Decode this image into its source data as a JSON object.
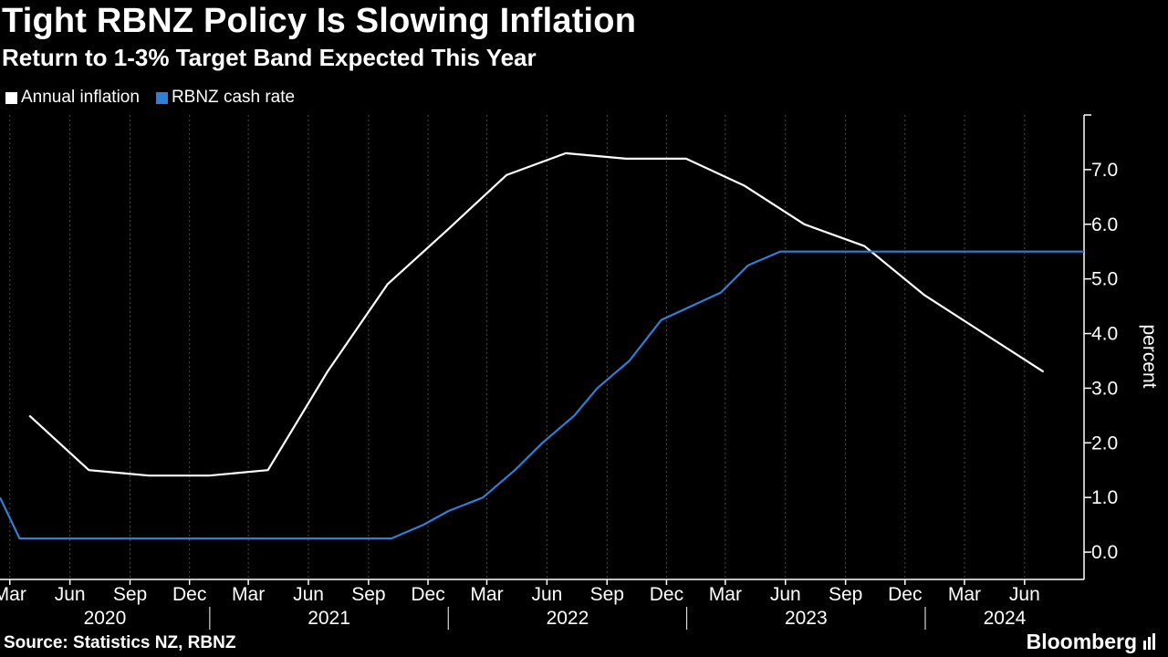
{
  "title": "Tight RBNZ Policy Is Slowing Inflation",
  "subtitle": "Return to 1-3% Target Band Expected This Year",
  "source": "Source: Statistics NZ, RBNZ",
  "brand": "Bloomberg",
  "colors": {
    "background": "#000000",
    "inflation": "#ffffff",
    "cash_rate": "#2f7fd6",
    "grid": "#4a4a4a"
  },
  "chart_data": {
    "type": "line",
    "ylabel": "percent",
    "ylim": [
      -0.5,
      8.0
    ],
    "yticks": [
      0.0,
      1.0,
      2.0,
      3.0,
      4.0,
      5.0,
      6.0,
      7.0
    ],
    "ytick_labels": [
      "0.0",
      "1.0",
      "2.0",
      "3.0",
      "4.0",
      "5.0",
      "6.0",
      "7.0"
    ],
    "xlim": [
      "2020-02-15",
      "2024-08-31"
    ],
    "xticks": [
      {
        "label": "Mar",
        "date": "2020-03-01"
      },
      {
        "label": "Jun",
        "date": "2020-06-01"
      },
      {
        "label": "Sep",
        "date": "2020-09-01"
      },
      {
        "label": "Dec",
        "date": "2020-12-01"
      },
      {
        "label": "Mar",
        "date": "2021-03-01"
      },
      {
        "label": "Jun",
        "date": "2021-06-01"
      },
      {
        "label": "Sep",
        "date": "2021-09-01"
      },
      {
        "label": "Dec",
        "date": "2021-12-01"
      },
      {
        "label": "Mar",
        "date": "2022-03-01"
      },
      {
        "label": "Jun",
        "date": "2022-06-01"
      },
      {
        "label": "Sep",
        "date": "2022-09-01"
      },
      {
        "label": "Dec",
        "date": "2022-12-01"
      },
      {
        "label": "Mar",
        "date": "2023-03-01"
      },
      {
        "label": "Jun",
        "date": "2023-06-01"
      },
      {
        "label": "Sep",
        "date": "2023-09-01"
      },
      {
        "label": "Dec",
        "date": "2023-12-01"
      },
      {
        "label": "Mar",
        "date": "2024-03-01"
      },
      {
        "label": "Jun",
        "date": "2024-06-01"
      }
    ],
    "years": [
      {
        "label": "2020",
        "from": "2020-02-15",
        "to": "2021-01-01"
      },
      {
        "label": "2021",
        "from": "2021-01-01",
        "to": "2022-01-01"
      },
      {
        "label": "2022",
        "from": "2022-01-01",
        "to": "2023-01-01"
      },
      {
        "label": "2023",
        "from": "2023-01-01",
        "to": "2024-01-01"
      },
      {
        "label": "2024",
        "from": "2024-01-01",
        "to": "2024-08-31"
      }
    ],
    "series": [
      {
        "name": "Annual inflation",
        "step": false,
        "points": [
          [
            "2020-03-31",
            2.5
          ],
          [
            "2020-06-30",
            1.5
          ],
          [
            "2020-09-30",
            1.4
          ],
          [
            "2020-12-31",
            1.4
          ],
          [
            "2021-03-31",
            1.5
          ],
          [
            "2021-06-30",
            3.3
          ],
          [
            "2021-09-30",
            4.9
          ],
          [
            "2021-12-31",
            5.9
          ],
          [
            "2022-03-31",
            6.9
          ],
          [
            "2022-06-30",
            7.3
          ],
          [
            "2022-09-30",
            7.2
          ],
          [
            "2022-12-31",
            7.2
          ],
          [
            "2023-03-31",
            6.7
          ],
          [
            "2023-06-30",
            6.0
          ],
          [
            "2023-09-30",
            5.6
          ],
          [
            "2023-12-31",
            4.7
          ],
          [
            "2024-03-31",
            4.0
          ],
          [
            "2024-06-30",
            3.3
          ]
        ]
      },
      {
        "name": "RBNZ cash rate",
        "step": false,
        "points": [
          [
            "2020-02-15",
            1.0
          ],
          [
            "2020-03-16",
            0.25
          ],
          [
            "2021-10-06",
            0.25
          ],
          [
            "2021-11-24",
            0.5
          ],
          [
            "2022-01-01",
            0.75
          ],
          [
            "2022-02-23",
            1.0
          ],
          [
            "2022-04-13",
            1.5
          ],
          [
            "2022-05-25",
            2.0
          ],
          [
            "2022-07-13",
            2.5
          ],
          [
            "2022-08-17",
            3.0
          ],
          [
            "2022-10-05",
            3.5
          ],
          [
            "2022-11-23",
            4.25
          ],
          [
            "2023-02-22",
            4.75
          ],
          [
            "2023-04-05",
            5.25
          ],
          [
            "2023-05-24",
            5.5
          ],
          [
            "2024-08-31",
            5.5
          ]
        ]
      }
    ]
  }
}
